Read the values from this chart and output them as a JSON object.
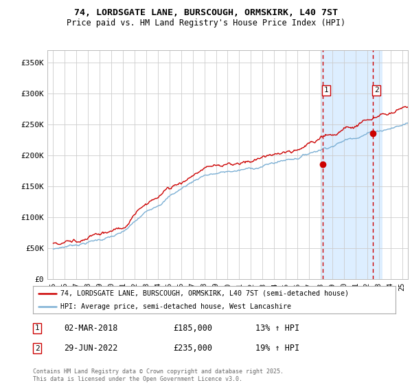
{
  "title_line1": "74, LORDSGATE LANE, BURSCOUGH, ORMSKIRK, L40 7ST",
  "title_line2": "Price paid vs. HM Land Registry's House Price Index (HPI)",
  "ylabel_ticks": [
    "£0",
    "£50K",
    "£100K",
    "£150K",
    "£200K",
    "£250K",
    "£300K",
    "£350K"
  ],
  "ytick_values": [
    0,
    50000,
    100000,
    150000,
    200000,
    250000,
    300000,
    350000
  ],
  "ylim": [
    0,
    370000
  ],
  "annotation1": {
    "label": "1",
    "date": "02-MAR-2018",
    "price": "£185,000",
    "change": "13% ↑ HPI",
    "x_year": 2018.17
  },
  "annotation2": {
    "label": "2",
    "date": "29-JUN-2022",
    "price": "£235,000",
    "change": "19% ↑ HPI",
    "x_year": 2022.49
  },
  "legend_line1": "74, LORDSGATE LANE, BURSCOUGH, ORMSKIRK, L40 7ST (semi-detached house)",
  "legend_line2": "HPI: Average price, semi-detached house, West Lancashire",
  "footer": "Contains HM Land Registry data © Crown copyright and database right 2025.\nThis data is licensed under the Open Government Licence v3.0.",
  "line_color_red": "#cc0000",
  "line_color_blue": "#7bafd4",
  "highlight_bg": "#ddeeff",
  "grid_color": "#cccccc",
  "vline_color": "#cc0000",
  "xlim_start": 1994.5,
  "xlim_end": 2025.5,
  "xtick_years": [
    1995,
    1996,
    1997,
    1998,
    1999,
    2000,
    2001,
    2002,
    2003,
    2004,
    2005,
    2006,
    2007,
    2008,
    2009,
    2010,
    2011,
    2012,
    2013,
    2014,
    2015,
    2016,
    2017,
    2018,
    2019,
    2020,
    2021,
    2022,
    2023,
    2024,
    2025
  ],
  "sale1_y": 185000,
  "sale2_y": 235000,
  "highlight_start": 2018.0,
  "highlight_end": 2023.3
}
